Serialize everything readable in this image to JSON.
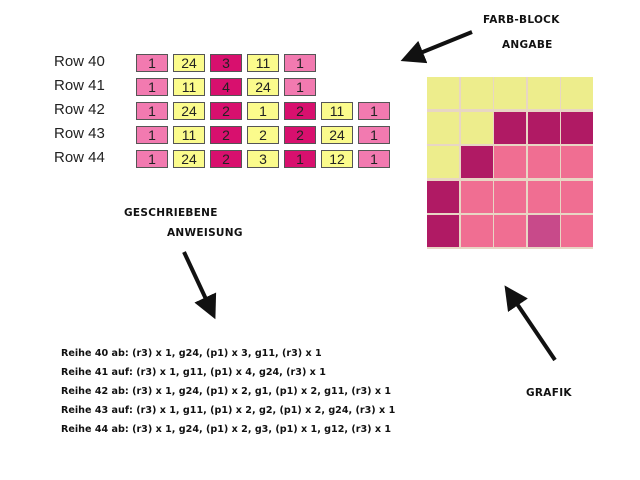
{
  "colors": {
    "p": "#f27ab0",
    "g": "#fbfb8c",
    "r": "#d8106e",
    "grid_yellow": "#eded8c",
    "grid_dark": "#b01a64",
    "grid_pink": "#f06e92",
    "grid_medium": "#c84a8a"
  },
  "labels": {
    "farb_block": "FARB-BLOCK",
    "angabe": "ANGABE",
    "geschriebene": "GESCHRIEBENE",
    "anweisung": "ANWEISUNG",
    "grafik": "GRAFIK"
  },
  "rows": [
    {
      "label": "Row 40",
      "blocks": [
        {
          "c": "p",
          "v": "1"
        },
        {
          "c": "g",
          "v": "24"
        },
        {
          "c": "r",
          "v": "3"
        },
        {
          "c": "g",
          "v": "11"
        },
        {
          "c": "p",
          "v": "1"
        }
      ]
    },
    {
      "label": "Row 41",
      "blocks": [
        {
          "c": "p",
          "v": "1"
        },
        {
          "c": "g",
          "v": "11"
        },
        {
          "c": "r",
          "v": "4"
        },
        {
          "c": "g",
          "v": "24"
        },
        {
          "c": "p",
          "v": "1"
        }
      ]
    },
    {
      "label": "Row 42",
      "blocks": [
        {
          "c": "p",
          "v": "1"
        },
        {
          "c": "g",
          "v": "24"
        },
        {
          "c": "r",
          "v": "2"
        },
        {
          "c": "g",
          "v": "1"
        },
        {
          "c": "r",
          "v": "2"
        },
        {
          "c": "g",
          "v": "11"
        },
        {
          "c": "p",
          "v": "1"
        }
      ]
    },
    {
      "label": "Row 43",
      "blocks": [
        {
          "c": "p",
          "v": "1"
        },
        {
          "c": "g",
          "v": "11"
        },
        {
          "c": "r",
          "v": "2"
        },
        {
          "c": "g",
          "v": "2"
        },
        {
          "c": "r",
          "v": "2"
        },
        {
          "c": "g",
          "v": "24"
        },
        {
          "c": "p",
          "v": "1"
        }
      ]
    },
    {
      "label": "Row 44",
      "blocks": [
        {
          "c": "p",
          "v": "1"
        },
        {
          "c": "g",
          "v": "24"
        },
        {
          "c": "r",
          "v": "2"
        },
        {
          "c": "g",
          "v": "3"
        },
        {
          "c": "r",
          "v": "1"
        },
        {
          "c": "g",
          "v": "12"
        },
        {
          "c": "p",
          "v": "1"
        }
      ]
    }
  ],
  "grid": [
    [
      "grid_yellow",
      "grid_yellow",
      "grid_yellow",
      "grid_yellow",
      "grid_yellow"
    ],
    [
      "grid_yellow",
      "grid_yellow",
      "grid_dark",
      "grid_dark",
      "grid_dark"
    ],
    [
      "grid_yellow",
      "grid_dark",
      "grid_pink",
      "grid_pink",
      "grid_pink"
    ],
    [
      "grid_dark",
      "grid_pink",
      "grid_pink",
      "grid_pink",
      "grid_pink"
    ],
    [
      "grid_dark",
      "grid_pink",
      "grid_pink",
      "grid_medium",
      "grid_pink"
    ]
  ],
  "instructions": [
    "Reihe 40 ab: (r3) x 1, g24, (p1) x 3, g11, (r3) x 1",
    "Reihe 41 auf: (r3) x 1, g11, (p1) x 4, g24, (r3) x 1",
    "Reihe 42 ab: (r3) x 1, g24, (p1) x 2, g1, (p1) x 2, g11, (r3) x 1",
    "Reihe 43 auf: (r3) x 1, g11, (p1) x 2, g2, (p1) x 2, g24, (r3) x 1",
    "Reihe 44 ab: (r3) x 1, g24, (p1) x 2, g3, (p1) x 1, g12, (r3) x 1"
  ]
}
